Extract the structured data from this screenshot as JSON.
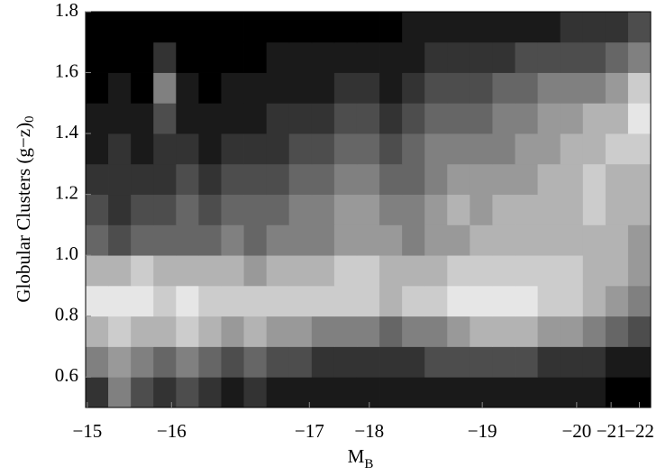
{
  "chart_data": {
    "type": "heatmap",
    "colormap": "gray",
    "xlabel": "M",
    "xlabel_subscript": "B",
    "ylabel": "Globular Clusters (g−z)",
    "ylabel_subscript": "0",
    "xlim": [
      0,
      100
    ],
    "xticks": [
      {
        "value": 0.3,
        "label": "−15"
      },
      {
        "value": 15.2,
        "label": "−16"
      },
      {
        "value": 39.6,
        "label": "−17"
      },
      {
        "value": 50.2,
        "label": "−18"
      },
      {
        "value": 70.2,
        "label": "−19"
      },
      {
        "value": 86.9,
        "label": "−20"
      },
      {
        "value": 93,
        "label": "−21"
      },
      {
        "value": 98,
        "label": "−22"
      }
    ],
    "ylim": [
      0.5,
      1.8
    ],
    "yticks": [
      0.6,
      0.8,
      {
        "value": 1,
        "label": "1.0"
      },
      1.2,
      1.4,
      1.6,
      1.8
    ],
    "x": [
      2,
      6,
      10,
      14,
      18,
      22,
      26,
      30,
      34,
      38,
      42,
      46,
      50,
      54,
      58,
      62,
      66,
      70,
      74,
      78,
      82,
      86,
      90,
      94,
      98
    ],
    "y": [
      0.55,
      0.65,
      0.75,
      0.85,
      0.95,
      1.05,
      1.15,
      1.25,
      1.35,
      1.45,
      1.55,
      1.65,
      1.75
    ],
    "z": [
      [
        0.2,
        0.5,
        0.3,
        0.2,
        0.3,
        0.2,
        0.1,
        0.2,
        0.1,
        0.1,
        0.1,
        0.1,
        0.1,
        0.1,
        0.1,
        0.1,
        0.1,
        0.1,
        0.1,
        0.1,
        0.1,
        0.1,
        0.1,
        0.0,
        0.0
      ],
      [
        0.5,
        0.6,
        0.5,
        0.4,
        0.5,
        0.4,
        0.3,
        0.4,
        0.3,
        0.3,
        0.2,
        0.2,
        0.2,
        0.2,
        0.2,
        0.3,
        0.3,
        0.3,
        0.3,
        0.3,
        0.2,
        0.2,
        0.2,
        0.1,
        0.1
      ],
      [
        0.7,
        0.8,
        0.7,
        0.7,
        0.8,
        0.7,
        0.6,
        0.7,
        0.6,
        0.6,
        0.5,
        0.5,
        0.5,
        0.4,
        0.5,
        0.5,
        0.6,
        0.7,
        0.7,
        0.7,
        0.6,
        0.6,
        0.5,
        0.4,
        0.3
      ],
      [
        0.9,
        0.9,
        0.9,
        0.8,
        0.9,
        0.8,
        0.8,
        0.8,
        0.8,
        0.8,
        0.8,
        0.8,
        0.8,
        0.7,
        0.8,
        0.8,
        0.9,
        0.9,
        0.9,
        0.9,
        0.8,
        0.8,
        0.7,
        0.6,
        0.5
      ],
      [
        0.7,
        0.7,
        0.8,
        0.7,
        0.7,
        0.7,
        0.7,
        0.6,
        0.7,
        0.7,
        0.7,
        0.8,
        0.8,
        0.7,
        0.7,
        0.7,
        0.8,
        0.8,
        0.8,
        0.8,
        0.8,
        0.8,
        0.7,
        0.7,
        0.6
      ],
      [
        0.4,
        0.3,
        0.4,
        0.4,
        0.4,
        0.4,
        0.5,
        0.4,
        0.5,
        0.5,
        0.5,
        0.6,
        0.6,
        0.6,
        0.5,
        0.6,
        0.6,
        0.7,
        0.7,
        0.7,
        0.7,
        0.7,
        0.7,
        0.7,
        0.6
      ],
      [
        0.3,
        0.2,
        0.3,
        0.3,
        0.4,
        0.3,
        0.4,
        0.4,
        0.4,
        0.5,
        0.5,
        0.6,
        0.6,
        0.5,
        0.5,
        0.6,
        0.7,
        0.6,
        0.7,
        0.7,
        0.7,
        0.7,
        0.8,
        0.7,
        0.7
      ],
      [
        0.2,
        0.2,
        0.2,
        0.2,
        0.3,
        0.2,
        0.3,
        0.3,
        0.3,
        0.4,
        0.4,
        0.5,
        0.5,
        0.4,
        0.4,
        0.5,
        0.6,
        0.6,
        0.6,
        0.6,
        0.7,
        0.7,
        0.8,
        0.7,
        0.7
      ],
      [
        0.1,
        0.2,
        0.1,
        0.2,
        0.2,
        0.1,
        0.2,
        0.2,
        0.2,
        0.3,
        0.3,
        0.4,
        0.4,
        0.3,
        0.4,
        0.5,
        0.5,
        0.5,
        0.5,
        0.6,
        0.6,
        0.7,
        0.7,
        0.8,
        0.8
      ],
      [
        0.1,
        0.1,
        0.1,
        0.3,
        0.1,
        0.1,
        0.1,
        0.1,
        0.2,
        0.2,
        0.2,
        0.3,
        0.3,
        0.2,
        0.3,
        0.4,
        0.4,
        0.4,
        0.5,
        0.5,
        0.6,
        0.6,
        0.7,
        0.7,
        0.9
      ],
      [
        0.0,
        0.1,
        0.0,
        0.5,
        0.1,
        0.0,
        0.1,
        0.1,
        0.1,
        0.1,
        0.1,
        0.2,
        0.2,
        0.1,
        0.2,
        0.3,
        0.3,
        0.3,
        0.4,
        0.4,
        0.5,
        0.5,
        0.5,
        0.6,
        0.8
      ],
      [
        0.0,
        0.0,
        0.0,
        0.2,
        0.0,
        0.0,
        0.0,
        0.0,
        0.1,
        0.1,
        0.1,
        0.1,
        0.1,
        0.1,
        0.1,
        0.2,
        0.2,
        0.2,
        0.2,
        0.3,
        0.3,
        0.3,
        0.3,
        0.4,
        0.5
      ],
      [
        0.0,
        0.0,
        0.0,
        0.0,
        0.0,
        0.0,
        0.0,
        0.0,
        0.0,
        0.0,
        0.0,
        0.0,
        0.0,
        0.0,
        0.1,
        0.1,
        0.1,
        0.1,
        0.1,
        0.1,
        0.1,
        0.2,
        0.2,
        0.2,
        0.3
      ]
    ]
  }
}
